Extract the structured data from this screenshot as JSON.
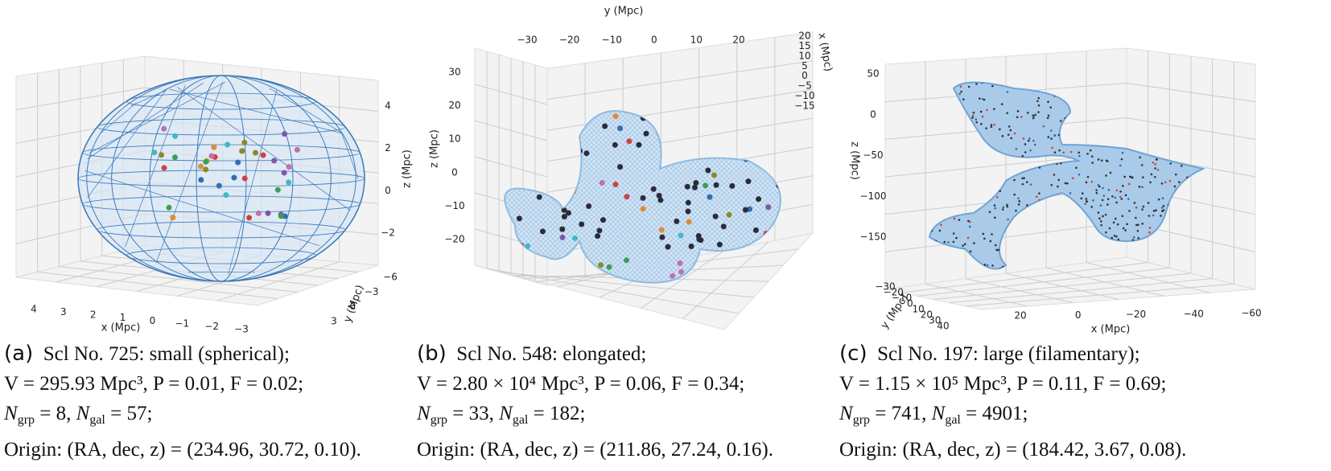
{
  "panels": [
    {
      "axes": {
        "x_label": "x (Mpc)",
        "y_label": "y (Mpc)",
        "z_label": "z (Mpc)",
        "x_ticks": [
          "4",
          "3",
          "2",
          "1",
          "0",
          "−1",
          "−2",
          "−3"
        ],
        "y_ticks": [
          "−6",
          "−3",
          "0",
          "3"
        ],
        "z_ticks": [
          "4",
          "2",
          "0",
          "−2"
        ]
      },
      "caption": {
        "label": "(a)",
        "title": "Scl No. 725: small (spherical);",
        "volume": "V = 295.93 Mpc³, P = 0.01, F = 0.02;",
        "n_sym": "N",
        "grp_sub": "grp",
        "grp_val": " = 8, ",
        "gal_sub": "gal",
        "gal_val": " = 57;",
        "origin": "Origin: (RA, dec, z) = (234.96, 30.72, 0.10)."
      }
    },
    {
      "axes": {
        "x_label": "x (Mpc)",
        "y_label": "y (Mpc)",
        "z_label": "z (Mpc)",
        "x_ticks": [
          "20",
          "15",
          "10",
          "5",
          "0",
          "−5",
          "−10",
          "−15"
        ],
        "y_ticks": [
          "−30",
          "−20",
          "−10",
          "0",
          "10",
          "20"
        ],
        "z_ticks": [
          "30",
          "20",
          "10",
          "0",
          "−10",
          "−20"
        ]
      },
      "caption": {
        "label": "(b)",
        "title": "Scl No. 548: elongated;",
        "volume": "V = 2.80 × 10⁴ Mpc³, P = 0.06, F = 0.34;",
        "n_sym": "N",
        "grp_sub": "grp",
        "grp_val": " = 33, ",
        "gal_sub": "gal",
        "gal_val": " = 182;",
        "origin": "Origin: (RA, dec, z) = (211.86, 27.24, 0.16)."
      }
    },
    {
      "axes": {
        "x_label": "x (Mpc)",
        "y_label": "y (Mpc)",
        "z_label": "z (Mpc)",
        "x_ticks": [
          "20",
          "0",
          "−20",
          "−40",
          "−60"
        ],
        "y_ticks": [
          "−30",
          "−20",
          "−10",
          "0",
          "10",
          "20",
          "30",
          "40"
        ],
        "z_ticks": [
          "50",
          "0",
          "−50",
          "−100",
          "−150"
        ]
      },
      "caption": {
        "label": "(c)",
        "title": "Scl No. 197: large (filamentary);",
        "volume": "V = 1.15 × 10⁵ Mpc³, P = 0.11, F = 0.69;",
        "n_sym": "N",
        "grp_sub": "grp",
        "grp_val": " = 741, ",
        "gal_sub": "gal",
        "gal_val": " = 4901;",
        "origin": "Origin: (RA, dec, z) = (184.42, 3.67, 0.08)."
      }
    }
  ]
}
